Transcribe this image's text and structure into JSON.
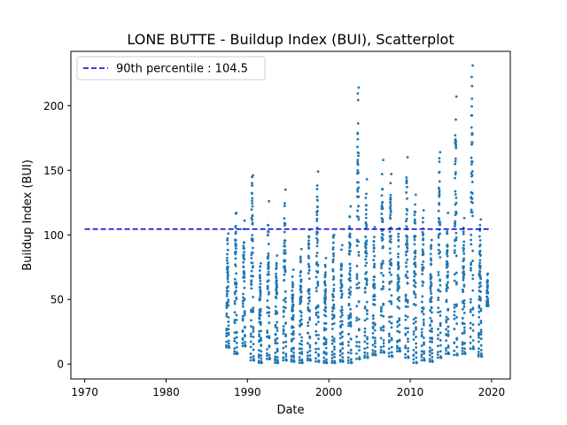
{
  "chart_data": {
    "type": "scatter",
    "title": "LONE BUTTE - Buildup Index (BUI), Scatterplot",
    "xlabel": "Date",
    "ylabel": "Buildup Index (BUI)",
    "xlim": [
      1968.3,
      2022.3
    ],
    "ylim": [
      -11.5,
      242
    ],
    "xticks": [
      1970,
      1980,
      1990,
      2000,
      2010,
      2020
    ],
    "yticks": [
      0,
      50,
      100,
      150,
      200
    ],
    "grid": false,
    "legend": {
      "placement": "top-left",
      "entries": [
        "90th percentile : 104.5"
      ]
    },
    "reference_line": {
      "label": "90th percentile : 104.5",
      "value": 104.5,
      "x_range": [
        1970,
        2020
      ],
      "color": "#0000cc",
      "style": "dashed"
    },
    "series": [
      {
        "marker_color": "#1f77b4",
        "seasons": [
          {
            "year": 1987,
            "start": 1987.4,
            "end": 1987.75,
            "min": 13,
            "max": 101
          },
          {
            "year": 1988,
            "start": 1988.4,
            "end": 1988.75,
            "min": 8,
            "max": 117
          },
          {
            "year": 1989,
            "start": 1989.4,
            "end": 1989.75,
            "min": 14,
            "max": 111
          },
          {
            "year": 1990,
            "start": 1990.4,
            "end": 1990.8,
            "min": 3,
            "max": 146
          },
          {
            "year": 1991,
            "start": 1991.4,
            "end": 1991.75,
            "min": 1,
            "max": 78
          },
          {
            "year": 1992,
            "start": 1992.4,
            "end": 1992.75,
            "min": 4,
            "max": 126
          },
          {
            "year": 1993,
            "start": 1993.4,
            "end": 1993.75,
            "min": 1,
            "max": 84
          },
          {
            "year": 1994,
            "start": 1994.4,
            "end": 1994.8,
            "min": 3,
            "max": 135
          },
          {
            "year": 1995,
            "start": 1995.4,
            "end": 1995.75,
            "min": 2,
            "max": 73
          },
          {
            "year": 1996,
            "start": 1996.4,
            "end": 1996.75,
            "min": 1,
            "max": 89
          },
          {
            "year": 1997,
            "start": 1997.4,
            "end": 1997.75,
            "min": 3,
            "max": 104
          },
          {
            "year": 1998,
            "start": 1998.4,
            "end": 1998.8,
            "min": 2,
            "max": 149
          },
          {
            "year": 1999,
            "start": 1999.4,
            "end": 1999.75,
            "min": 1,
            "max": 82
          },
          {
            "year": 2000,
            "start": 2000.4,
            "end": 2000.75,
            "min": 1,
            "max": 100
          },
          {
            "year": 2001,
            "start": 2001.4,
            "end": 2001.75,
            "min": 2,
            "max": 92
          },
          {
            "year": 2002,
            "start": 2002.4,
            "end": 2002.8,
            "min": 1,
            "max": 122
          },
          {
            "year": 2003,
            "start": 2003.4,
            "end": 2003.8,
            "min": 4,
            "max": 214
          },
          {
            "year": 2004,
            "start": 2004.4,
            "end": 2004.8,
            "min": 5,
            "max": 143
          },
          {
            "year": 2005,
            "start": 2005.4,
            "end": 2005.75,
            "min": 7,
            "max": 106
          },
          {
            "year": 2006,
            "start": 2006.4,
            "end": 2006.8,
            "min": 9,
            "max": 158
          },
          {
            "year": 2007,
            "start": 2007.4,
            "end": 2007.8,
            "min": 6,
            "max": 147
          },
          {
            "year": 2008,
            "start": 2008.4,
            "end": 2008.75,
            "min": 10,
            "max": 105
          },
          {
            "year": 2009,
            "start": 2009.4,
            "end": 2009.8,
            "min": 5,
            "max": 160
          },
          {
            "year": 2010,
            "start": 2010.4,
            "end": 2010.8,
            "min": 1,
            "max": 131
          },
          {
            "year": 2011,
            "start": 2011.4,
            "end": 2011.75,
            "min": 3,
            "max": 119
          },
          {
            "year": 2012,
            "start": 2012.4,
            "end": 2012.75,
            "min": 2,
            "max": 96
          },
          {
            "year": 2013,
            "start": 2013.4,
            "end": 2013.8,
            "min": 5,
            "max": 164
          },
          {
            "year": 2014,
            "start": 2014.4,
            "end": 2014.75,
            "min": 8,
            "max": 117
          },
          {
            "year": 2015,
            "start": 2015.4,
            "end": 2015.8,
            "min": 7,
            "max": 207
          },
          {
            "year": 2016,
            "start": 2016.4,
            "end": 2016.75,
            "min": 8,
            "max": 113
          },
          {
            "year": 2017,
            "start": 2017.4,
            "end": 2017.8,
            "min": 12,
            "max": 231
          },
          {
            "year": 2018,
            "start": 2018.4,
            "end": 2018.8,
            "min": 6,
            "max": 112
          },
          {
            "year": 2019,
            "start": 2019.4,
            "end": 2019.6,
            "min": 45,
            "max": 70
          }
        ]
      }
    ]
  }
}
